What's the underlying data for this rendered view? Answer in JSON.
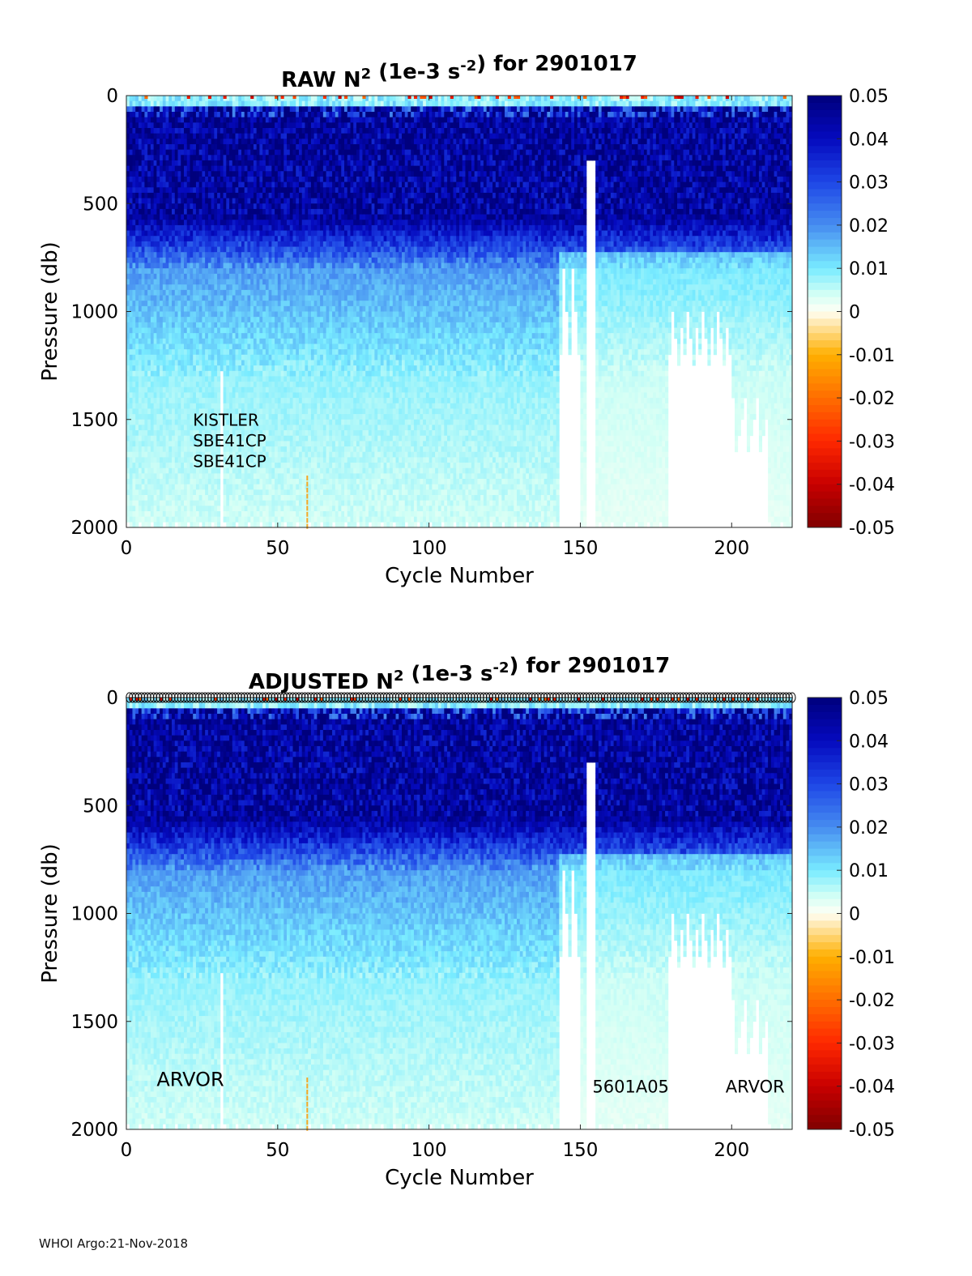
{
  "footer": "WHOI Argo:21-Nov-2018",
  "chart_data": [
    {
      "type": "heatmap",
      "title_prefix": "RAW N",
      "title_sup": "2",
      "title_units_a": " (1e-3 s",
      "title_units_sup": "-2",
      "title_units_b": ") for 2901017",
      "xlabel": "Cycle Number",
      "ylabel": "Pressure (db)",
      "xlim": [
        0,
        220
      ],
      "ylim": [
        0,
        2000
      ],
      "y_reversed": true,
      "xticks": [
        0,
        50,
        100,
        150,
        200
      ],
      "yticks": [
        0,
        500,
        1000,
        1500,
        2000
      ],
      "colorbar_ticks": [
        0.05,
        0.04,
        0.03,
        0.02,
        0.01,
        0,
        -0.01,
        -0.02,
        -0.03,
        -0.04,
        -0.05
      ],
      "clim": [
        -0.05,
        0.05
      ],
      "annotations": [
        {
          "text": "KISTLER",
          "cycle": 22,
          "pressure": 1530
        },
        {
          "text": "SBE41CP",
          "cycle": 22,
          "pressure": 1625
        },
        {
          "text": "SBE41CP",
          "cycle": 22,
          "pressure": 1720
        }
      ],
      "show_top_markers": false
    },
    {
      "type": "heatmap",
      "title_prefix": "ADJUSTED N",
      "title_sup": "2",
      "title_units_a": " (1e-3 s",
      "title_units_sup": "-2",
      "title_units_b": ") for 2901017",
      "xlabel": "Cycle Number",
      "ylabel": "Pressure (db)",
      "xlim": [
        0,
        220
      ],
      "ylim": [
        0,
        2000
      ],
      "y_reversed": true,
      "xticks": [
        0,
        50,
        100,
        150,
        200
      ],
      "yticks": [
        0,
        500,
        1000,
        1500,
        2000
      ],
      "colorbar_ticks": [
        0.05,
        0.04,
        0.03,
        0.02,
        0.01,
        0,
        -0.01,
        -0.02,
        -0.03,
        -0.04,
        -0.05
      ],
      "clim": [
        -0.05,
        0.05
      ],
      "annotations": [
        {
          "text": "ARVOR",
          "cycle": 10,
          "pressure": 1800
        },
        {
          "text": "5601A05",
          "cycle": 154,
          "pressure": 1830
        },
        {
          "text": "ARVOR",
          "cycle": 198,
          "pressure": 1830
        }
      ],
      "show_top_markers": true
    }
  ]
}
